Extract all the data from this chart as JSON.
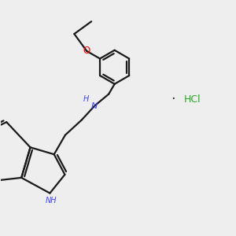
{
  "background_color": "#eeeeee",
  "bond_color": "#1a1a1a",
  "n_color": "#4444ff",
  "o_color": "#ff0000",
  "hcl_color": "#22aa22",
  "line_width": 1.6,
  "fig_size": [
    3.0,
    3.0
  ],
  "dpi": 100,
  "xlim": [
    0,
    10
  ],
  "ylim": [
    0,
    10
  ]
}
